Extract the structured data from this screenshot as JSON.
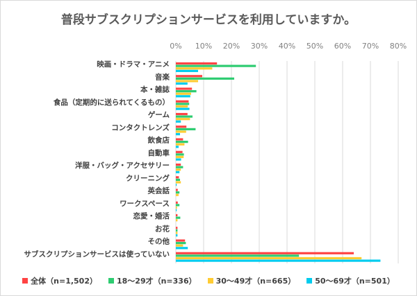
{
  "chart_data": {
    "type": "bar",
    "orientation": "horizontal",
    "title": "普段サブスクリプションサービスを利用していますか。",
    "categories": [
      "映画・ドラマ・アニメ",
      "音楽",
      "本・雑誌",
      "食品（定期的に送られてくるもの）",
      "ゲーム",
      "コンタクトレンズ",
      "飲食店",
      "自動車",
      "洋服・バッグ・アクセサリー",
      "クリーニング",
      "英会話",
      "ワークスペース",
      "恋愛・婚活",
      "お花",
      "その他",
      "サブスクリプションサービスは使っていない"
    ],
    "series": [
      {
        "name": "全体（n=1,502）",
        "color": "#FF4343",
        "values": [
          14.8,
          9.5,
          5.8,
          4.6,
          4.2,
          3.8,
          2.6,
          2.4,
          1.8,
          1.1,
          0.7,
          0.7,
          0.6,
          0.6,
          3.3,
          64.0
        ]
      },
      {
        "name": "18～29才（n=336）",
        "color": "#2ECC71",
        "values": [
          28.8,
          21.0,
          7.4,
          4.8,
          6.0,
          7.1,
          4.4,
          2.9,
          2.6,
          1.5,
          1.3,
          1.3,
          1.6,
          0.6,
          3.6,
          44.3
        ]
      },
      {
        "name": "30～49才（n=665）",
        "color": "#FFCC33",
        "values": [
          13.1,
          8.0,
          5.5,
          4.3,
          5.1,
          3.7,
          3.1,
          2.8,
          1.8,
          1.8,
          1.0,
          0.4,
          0.6,
          0.6,
          2.6,
          66.8
        ]
      },
      {
        "name": "50～69才（n=501）",
        "color": "#00CCEE",
        "values": [
          8.0,
          4.2,
          5.2,
          4.9,
          1.8,
          1.5,
          1.0,
          1.9,
          1.3,
          0.3,
          0.0,
          0.3,
          0.0,
          0.6,
          4.3,
          73.6
        ]
      }
    ],
    "xlim": [
      0,
      80
    ],
    "xticks": [
      "0%",
      "10%",
      "20%",
      "30%",
      "40%",
      "50%",
      "60%",
      "70%",
      "80%"
    ],
    "grid": true,
    "legend_position": "bottom"
  }
}
